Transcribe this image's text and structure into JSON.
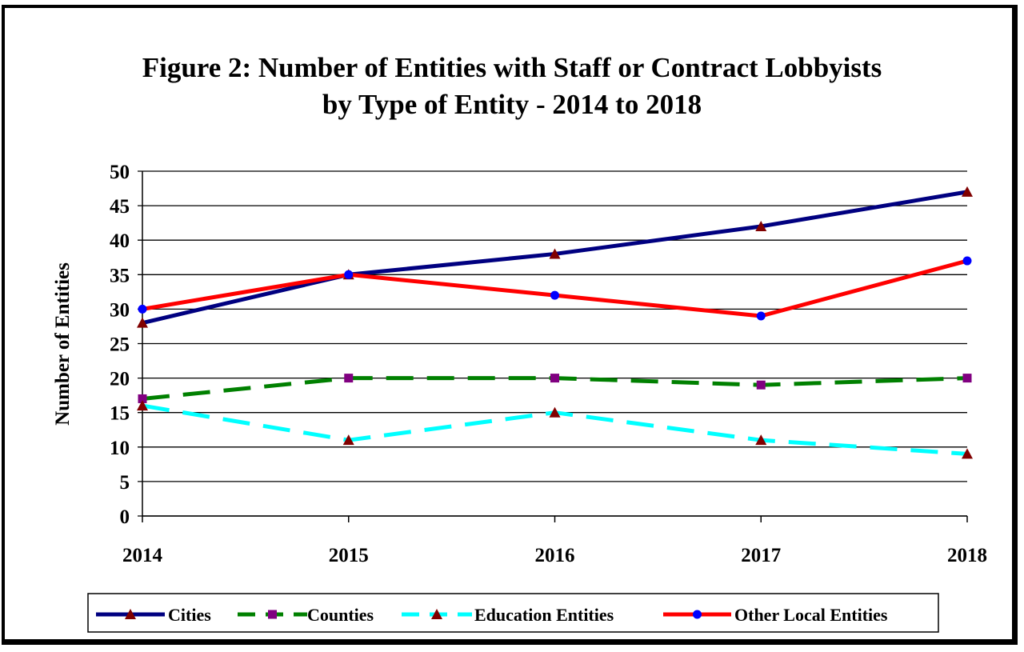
{
  "chart_data": {
    "type": "line",
    "title_line1": "Figure 2:  Number of Entities with Staff or Contract Lobbyists",
    "title_line2": "by Type of Entity - 2014 to 2018",
    "xlabel": "",
    "ylabel": "Number of Entities",
    "x": [
      "2014",
      "2015",
      "2016",
      "2017",
      "2018"
    ],
    "ylim": [
      0,
      50
    ],
    "ytick_step": 5,
    "grid": "horizontal",
    "legend_position": "bottom",
    "series": [
      {
        "name": "Cities",
        "values": [
          28,
          35,
          38,
          42,
          47
        ],
        "color": "#000080",
        "dash": "solid",
        "marker": "triangle",
        "marker_color": "#800000"
      },
      {
        "name": "Counties",
        "values": [
          17,
          20,
          20,
          19,
          20
        ],
        "color": "#008000",
        "dash": "dashed",
        "marker": "square",
        "marker_color": "#800080"
      },
      {
        "name": "Education Entities",
        "values": [
          16,
          11,
          15,
          11,
          9
        ],
        "color": "#00ffff",
        "dash": "dashed",
        "marker": "triangle",
        "marker_color": "#800000"
      },
      {
        "name": "Other Local Entities",
        "values": [
          30,
          35,
          32,
          29,
          37
        ],
        "color": "#ff0000",
        "dash": "solid",
        "marker": "circle",
        "marker_color": "#0000ff"
      }
    ]
  }
}
